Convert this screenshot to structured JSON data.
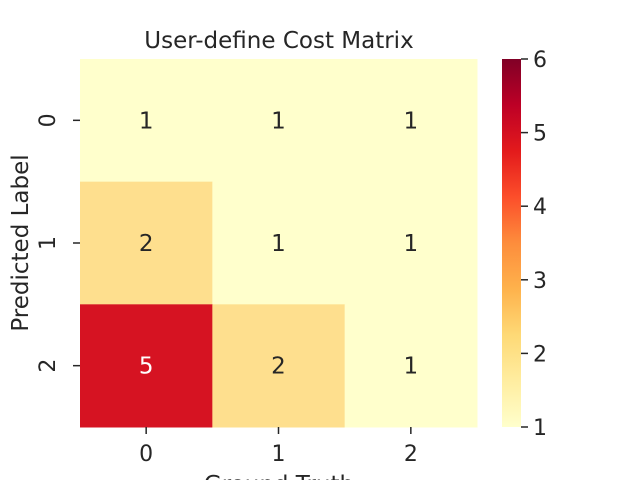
{
  "chart_data": {
    "type": "heatmap",
    "title": "User-define Cost Matrix",
    "xlabel": "Ground Truth",
    "ylabel": "Predicted Label",
    "x_categories": [
      "0",
      "1",
      "2"
    ],
    "y_categories": [
      "0",
      "1",
      "2"
    ],
    "values": [
      [
        1,
        1,
        1
      ],
      [
        2,
        1,
        1
      ],
      [
        5,
        2,
        1
      ]
    ],
    "colorbar": {
      "min": 1,
      "max": 6,
      "ticks": [
        "1",
        "2",
        "3",
        "4",
        "5",
        "6"
      ],
      "colormap": "YlOrRd"
    },
    "colors": {
      "cell_1": "#ffffcc",
      "cell_2": "#fedf8e",
      "cell_5": "#d61322",
      "annotation_dark": "#262626",
      "annotation_light": "#ffffff"
    }
  }
}
